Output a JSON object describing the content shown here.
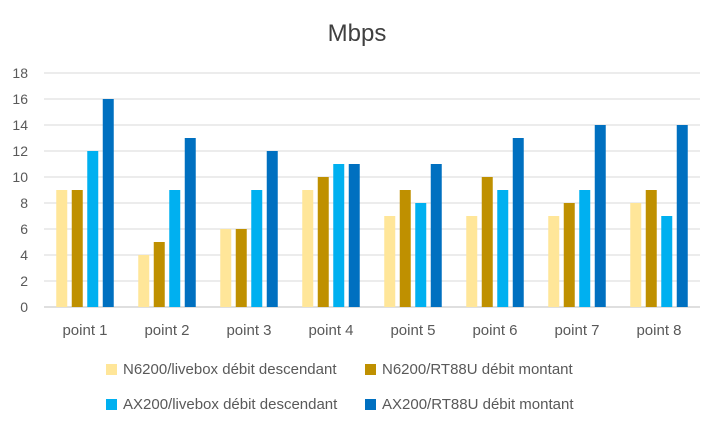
{
  "chart_data": {
    "type": "bar",
    "title": "Mbps",
    "categories": [
      "point 1",
      "point 2",
      "point 3",
      "point 4",
      "point 5",
      "point 6",
      "point 7",
      "point 8"
    ],
    "ylim": [
      0,
      18
    ],
    "yticks": [
      0,
      2,
      4,
      6,
      8,
      10,
      12,
      14,
      16,
      18
    ],
    "grid": true,
    "legend_position": "bottom",
    "series": [
      {
        "name": "N6200/livebox débit descendant",
        "color": "#FFE699",
        "values": [
          9,
          4,
          6,
          9,
          7,
          7,
          7,
          8
        ]
      },
      {
        "name": "N6200/RT88U débit montant",
        "color": "#BF9000",
        "values": [
          9,
          5,
          6,
          10,
          9,
          10,
          8,
          9
        ]
      },
      {
        "name": "AX200/livebox débit descendant",
        "color": "#00B0F0",
        "values": [
          12,
          9,
          9,
          11,
          8,
          9,
          9,
          7
        ]
      },
      {
        "name": "AX200/RT88U débit montant",
        "color": "#0070C0",
        "values": [
          16,
          13,
          12,
          11,
          11,
          13,
          14,
          14
        ]
      }
    ]
  }
}
